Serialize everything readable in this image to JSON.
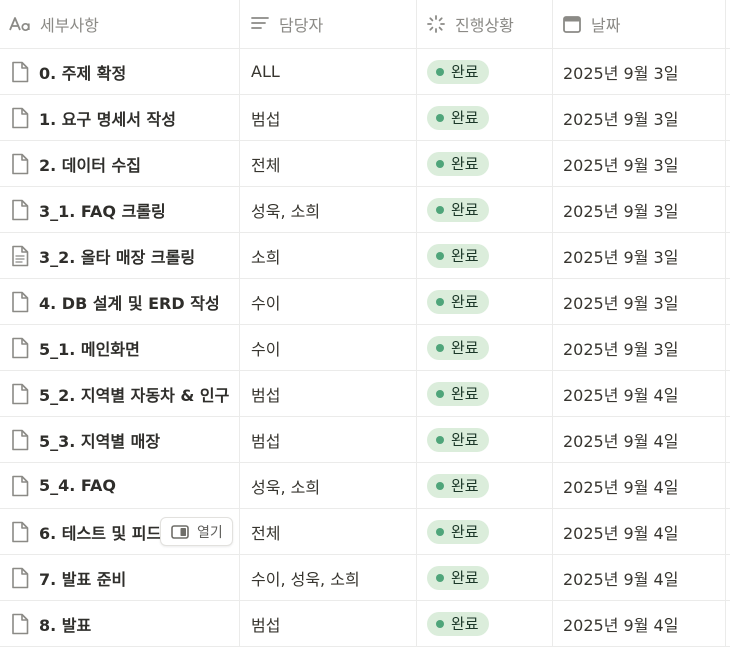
{
  "columns": {
    "title": {
      "label": "세부사항",
      "icon": "text-aa-icon"
    },
    "assignee": {
      "label": "담당자",
      "icon": "lines-icon"
    },
    "status": {
      "label": "진행상황",
      "icon": "spinner-icon"
    },
    "date": {
      "label": "날짜",
      "icon": "calendar-icon"
    }
  },
  "status_color": "#4fa57a",
  "badge_bg": "#dbeddb",
  "open_button": {
    "label": "열기",
    "icon": "side-peek-icon"
  },
  "rows": [
    {
      "title": "0. 주제 확정",
      "assignee": "ALL",
      "status": "완료",
      "date": "2025년 9월 3일",
      "icon": "page-icon"
    },
    {
      "title": "1. 요구 명세서 작성",
      "assignee": "범섭",
      "status": "완료",
      "date": "2025년 9월 3일",
      "icon": "page-icon"
    },
    {
      "title": "2. 데이터 수집",
      "assignee": "전체",
      "status": "완료",
      "date": "2025년 9월 3일",
      "icon": "page-icon"
    },
    {
      "title": "3_1. FAQ 크롤링",
      "assignee": "성욱, 소희",
      "status": "완료",
      "date": "2025년 9월 3일",
      "icon": "page-icon"
    },
    {
      "title": "3_2. 올타 매장 크롤링",
      "assignee": "소희",
      "status": "완료",
      "date": "2025년 9월 3일",
      "icon": "page-text-icon"
    },
    {
      "title": "4. DB 설계 및 ERD 작성",
      "assignee": "수이",
      "status": "완료",
      "date": "2025년 9월 3일",
      "icon": "page-icon"
    },
    {
      "title": "5_1. 메인화면",
      "assignee": "수이",
      "status": "완료",
      "date": "2025년 9월 3일",
      "icon": "page-icon"
    },
    {
      "title": "5_2. 지역별 자동차 & 인구",
      "assignee": "범섭",
      "status": "완료",
      "date": "2025년 9월 4일",
      "icon": "page-icon"
    },
    {
      "title": "5_3. 지역별 매장",
      "assignee": "범섭",
      "status": "완료",
      "date": "2025년 9월 4일",
      "icon": "page-icon"
    },
    {
      "title": "5_4. FAQ",
      "assignee": "성욱, 소희",
      "status": "완료",
      "date": "2025년 9월 4일",
      "icon": "page-icon"
    },
    {
      "title": "6. 테스트 및 피드",
      "assignee": "전체",
      "status": "완료",
      "date": "2025년 9월 4일",
      "icon": "page-icon"
    },
    {
      "title": "7. 발표 준비",
      "assignee": "수이, 성욱, 소희",
      "status": "완료",
      "date": "2025년 9월 4일",
      "icon": "page-icon"
    },
    {
      "title": "8. 발표",
      "assignee": "범섭",
      "status": "완료",
      "date": "2025년 9월 4일",
      "icon": "page-icon"
    }
  ]
}
